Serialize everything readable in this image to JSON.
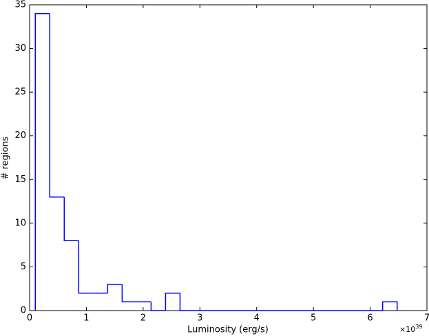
{
  "chart_data": {
    "type": "histogram",
    "xlabel": "Luminosity (erg/s)",
    "ylabel": "# regions",
    "x_offset_label": {
      "base": "×10",
      "exponent": "39"
    },
    "bins": [
      0.1,
      0.355,
      0.61,
      0.865,
      1.12,
      1.375,
      1.63,
      1.885,
      2.14,
      2.395,
      2.65,
      2.905,
      3.16,
      3.415,
      3.67,
      3.925,
      4.18,
      4.435,
      4.69,
      4.945,
      5.2,
      5.455,
      5.71,
      5.965,
      6.22,
      6.475
    ],
    "values": [
      34,
      13,
      8,
      2,
      2,
      3,
      1,
      1,
      0,
      2,
      0,
      0,
      0,
      0,
      0,
      0,
      0,
      0,
      0,
      0,
      0,
      0,
      0,
      0,
      1
    ],
    "color": "#0000ff",
    "xlim": [
      0,
      7
    ],
    "xticks": [
      0,
      1,
      2,
      3,
      4,
      5,
      6,
      7
    ],
    "ylim": [
      0,
      35
    ],
    "yticks": [
      0,
      5,
      10,
      15,
      20,
      25,
      30,
      35
    ],
    "grid": false
  }
}
